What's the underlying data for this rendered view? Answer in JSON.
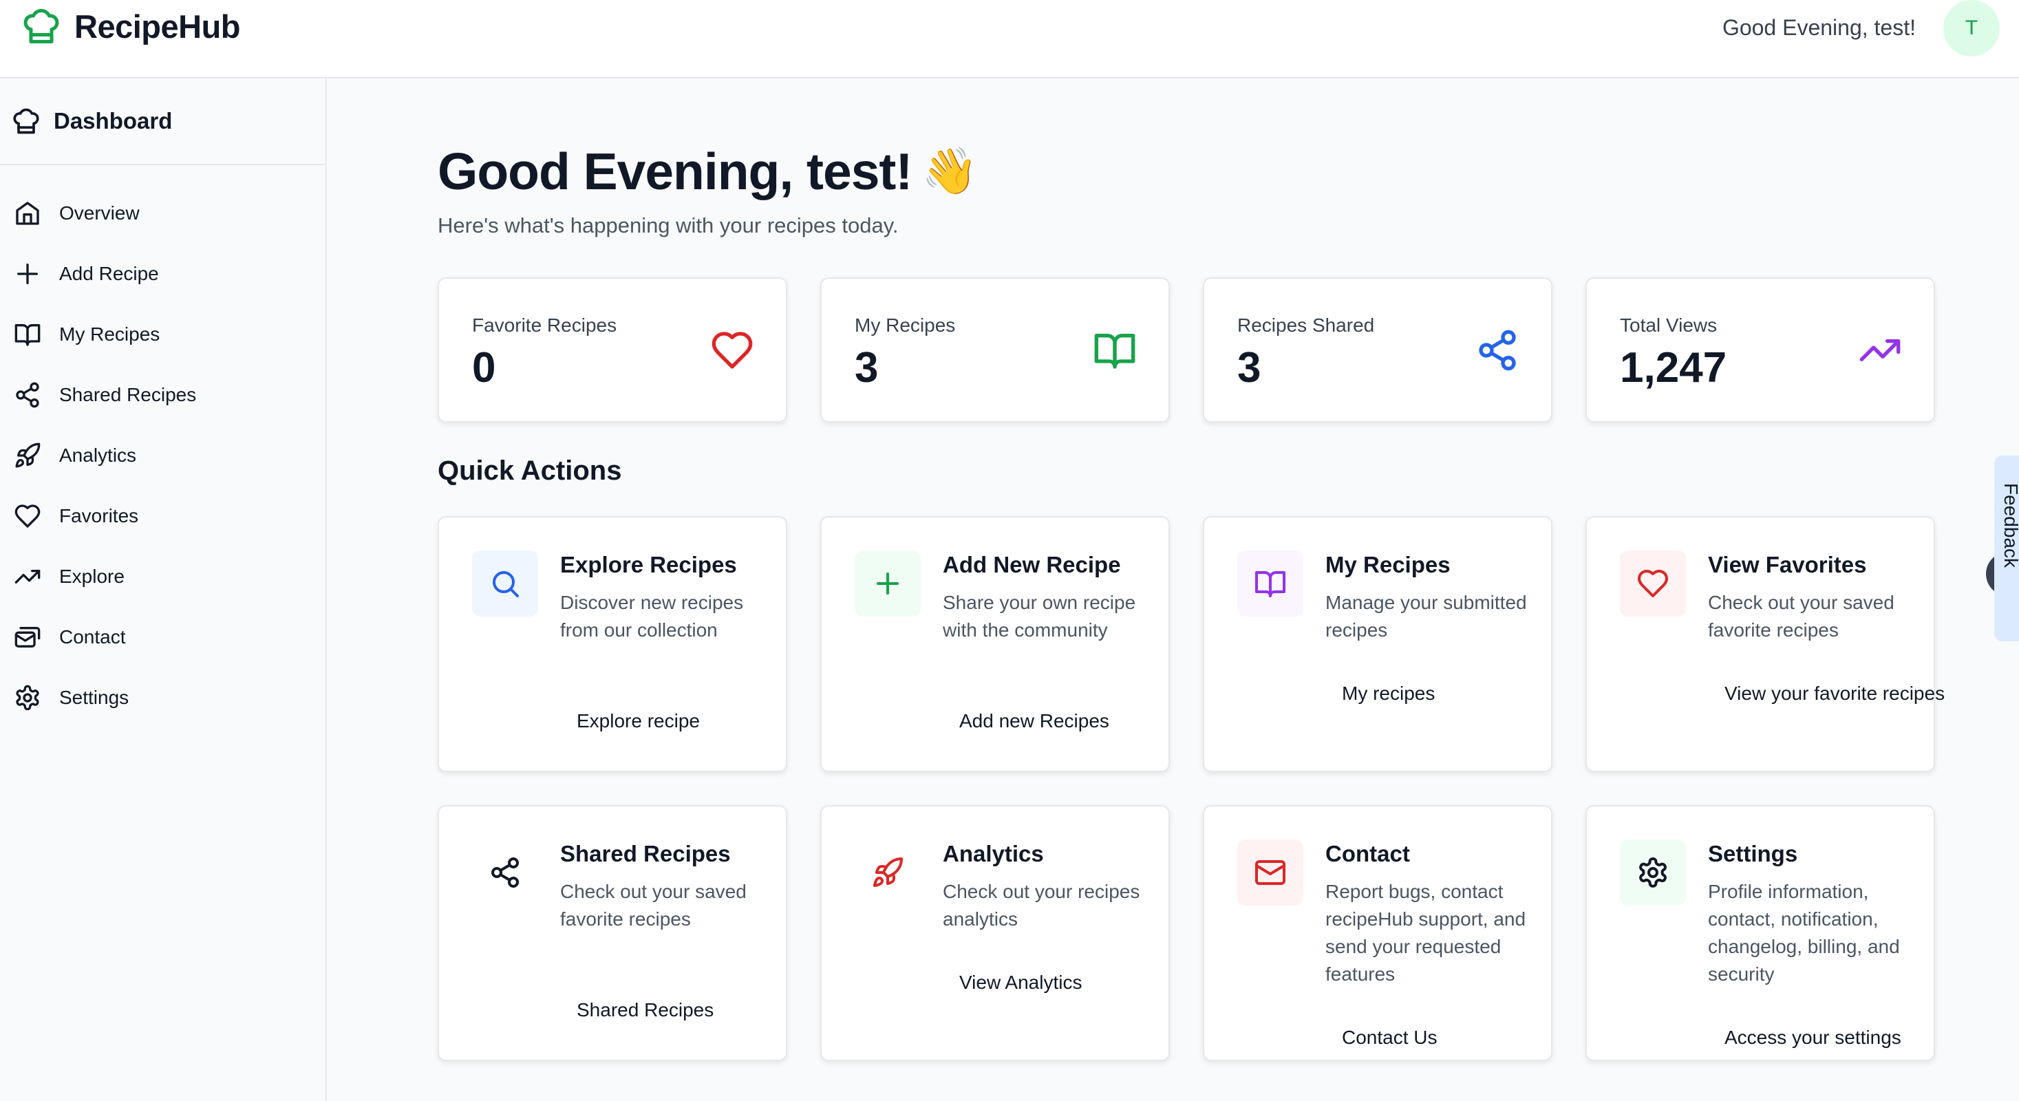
{
  "app": {
    "name": "RecipeHub",
    "logo_icon": "chef-hat-icon"
  },
  "header": {
    "greeting": "Good Evening, test!",
    "avatar_initial": "T"
  },
  "sidebar": {
    "title": "Dashboard",
    "items": [
      {
        "label": "Overview",
        "icon": "home-icon"
      },
      {
        "label": "Add Recipe",
        "icon": "plus-icon"
      },
      {
        "label": "My Recipes",
        "icon": "book-open-icon"
      },
      {
        "label": "Shared Recipes",
        "icon": "share-icon"
      },
      {
        "label": "Analytics",
        "icon": "rocket-icon"
      },
      {
        "label": "Favorites",
        "icon": "heart-icon"
      },
      {
        "label": "Explore",
        "icon": "trending-up-icon"
      },
      {
        "label": "Contact",
        "icon": "mail-icon"
      },
      {
        "label": "Settings",
        "icon": "gear-icon"
      }
    ]
  },
  "main": {
    "title": "Good Evening, test!",
    "wave_emoji": "👋",
    "subtitle": "Here's what's happening with your recipes today.",
    "stats": [
      {
        "label": "Favorite Recipes",
        "value": "0",
        "icon": "heart-icon",
        "color": "#dc2626"
      },
      {
        "label": "My Recipes",
        "value": "3",
        "icon": "book-open-icon",
        "color": "#16a34a"
      },
      {
        "label": "Recipes Shared",
        "value": "3",
        "icon": "share-icon",
        "color": "#2563eb"
      },
      {
        "label": "Total Views",
        "value": "1,247",
        "icon": "trending-up-icon",
        "color": "#9333ea"
      }
    ],
    "quick_actions_title": "Quick Actions",
    "actions": [
      {
        "title": "Explore Recipes",
        "description": "Discover new recipes from our collection",
        "link": "Explore recipe",
        "icon": "search-icon"
      },
      {
        "title": "Add New Recipe",
        "description": "Share your own recipe with the community",
        "link": "Add new Recipes",
        "icon": "plus-icon"
      },
      {
        "title": "My Recipes",
        "description": "Manage your submitted recipes",
        "link": "My recipes",
        "icon": "book-open-icon"
      },
      {
        "title": "View Favorites",
        "description": "Check out your saved favorite recipes",
        "link": "View your favorite recipes",
        "icon": "heart-icon"
      },
      {
        "title": "Shared Recipes",
        "description": "Check out your saved favorite recipes",
        "link": "Shared Recipes",
        "icon": "share-icon"
      },
      {
        "title": "Analytics",
        "description": "Check out your recipes analytics",
        "link": "View Analytics",
        "icon": "rocket-icon"
      },
      {
        "title": "Contact",
        "description": "Report bugs, contact recipeHub support, and send your requested features",
        "link": "Contact Us",
        "icon": "mail-icon"
      },
      {
        "title": "Settings",
        "description": "Profile information, contact, notification, changelog, billing, and security",
        "link": "Access your settings",
        "icon": "gear-icon"
      }
    ]
  },
  "feedback": {
    "label": "Feedback"
  }
}
